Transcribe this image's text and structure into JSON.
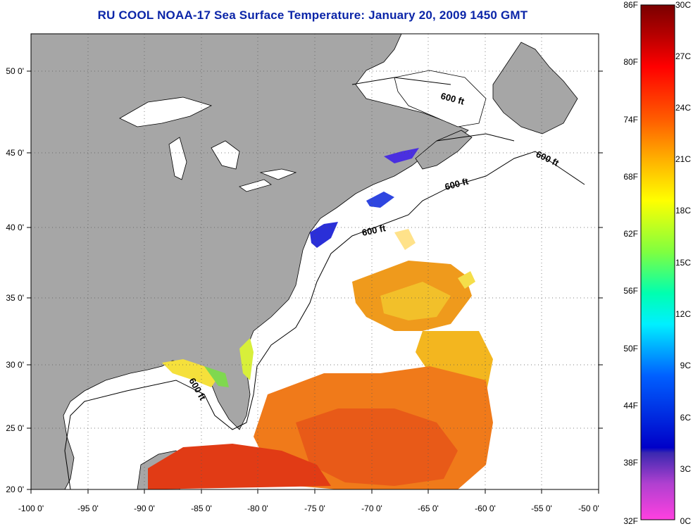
{
  "title": "RU COOL  NOAA-17  Sea Surface Temperature:  January 20, 2009 1450 GMT",
  "map": {
    "land_color": "#a6a6a6",
    "water_color": "#ffffff",
    "x_ticks": [
      "-100 0'",
      "-95 0'",
      "-90 0'",
      "-85 0'",
      "-80 0'",
      "-75 0'",
      "-70 0'",
      "-65 0'",
      "-60 0'",
      "-55 0'",
      "-50 0'"
    ],
    "y_ticks": [
      "50 0'",
      "45 0'",
      "40 0'",
      "35 0'",
      "30 0'",
      "25 0'",
      "20 0'"
    ],
    "contour_labels": [
      "600 ft",
      "600 ft",
      "600 ft",
      "600 ft",
      "600 ft"
    ]
  },
  "colorbar": {
    "fahrenheit": [
      "86F",
      "80F",
      "74F",
      "68F",
      "62F",
      "56F",
      "50F",
      "44F",
      "38F",
      "32F"
    ],
    "celsius": [
      "30C",
      "27C",
      "24C",
      "21C",
      "18C",
      "15C",
      "12C",
      "9C",
      "6C",
      "3C",
      "0C"
    ]
  }
}
